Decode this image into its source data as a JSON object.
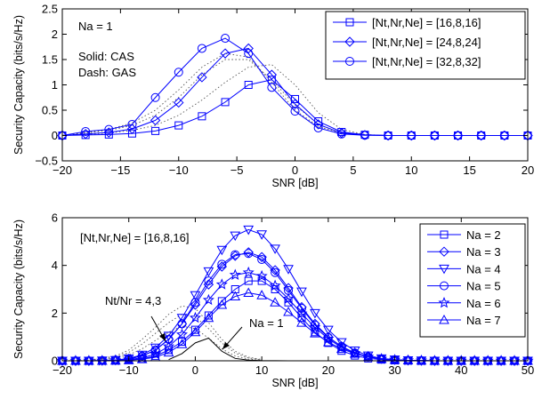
{
  "chart_data": [
    {
      "type": "line",
      "xlabel": "SNR [dB]",
      "ylabel": "Security Capacity (bits/s/Hz)",
      "xlim": [
        -20,
        20
      ],
      "ylim": [
        -0.5,
        2.5
      ],
      "xticks": [
        -20,
        -15,
        -10,
        -5,
        0,
        5,
        10,
        15,
        20
      ],
      "yticks": [
        -0.5,
        0,
        0.5,
        1,
        1.5,
        2,
        2.5
      ],
      "ytick_labels": [
        "−0.5",
        "0",
        "0.5",
        "1",
        "1.5",
        "2",
        "2.5"
      ],
      "xtick_labels": [
        "−20",
        "−15",
        "−10",
        "−5",
        "0",
        "5",
        "10",
        "15",
        "20"
      ],
      "grid": false,
      "legend_position": "top-right",
      "annotations": [
        "Na = 1",
        "Solid: CAS",
        "Dash: GAS"
      ],
      "x": [
        -20,
        -18,
        -16,
        -14,
        -12,
        -10,
        -8,
        -6,
        -4,
        -2,
        0,
        2,
        4,
        6,
        8,
        10,
        12,
        14,
        16,
        18,
        20
      ],
      "series": [
        {
          "name": "[Nt,Nr,Ne] = [16,8,16]",
          "marker": "square",
          "values": [
            0.0,
            0.01,
            0.02,
            0.04,
            0.09,
            0.2,
            0.38,
            0.66,
            1.0,
            1.1,
            0.72,
            0.28,
            0.07,
            0.015,
            0.0,
            0.0,
            0.0,
            0.0,
            0.0,
            0.0,
            0.0
          ],
          "dashed_values": [
            0.0,
            0.02,
            0.05,
            0.1,
            0.2,
            0.4,
            0.7,
            1.05,
            1.35,
            1.4,
            1.0,
            0.45,
            0.12,
            0.02,
            0.0,
            0.0,
            0.0,
            0.0,
            0.0,
            0.0,
            0.0
          ]
        },
        {
          "name": "[Nt,Nr,Ne] = [24,8,24]",
          "marker": "diamond",
          "values": [
            0.0,
            0.03,
            0.06,
            0.13,
            0.3,
            0.65,
            1.15,
            1.62,
            1.72,
            1.2,
            0.62,
            0.22,
            0.05,
            0.01,
            0.0,
            0.0,
            0.0,
            0.0,
            0.0,
            0.0,
            0.0
          ],
          "dashed_values": [
            0.0,
            0.05,
            0.1,
            0.2,
            0.4,
            0.75,
            1.2,
            1.5,
            1.5,
            1.1,
            0.6,
            0.22,
            0.05,
            0.01,
            0.0,
            0.0,
            0.0,
            0.0,
            0.0,
            0.0,
            0.0
          ]
        },
        {
          "name": "[Nt,Nr,Ne] = [32,8,32]",
          "marker": "circle",
          "values": [
            0.0,
            0.08,
            0.12,
            0.22,
            0.75,
            1.25,
            1.72,
            1.92,
            1.62,
            0.95,
            0.48,
            0.15,
            0.03,
            0.005,
            0.0,
            0.0,
            0.0,
            0.0,
            0.0,
            0.0,
            0.0
          ],
          "dashed_values": [
            0.0,
            0.06,
            0.12,
            0.25,
            0.5,
            0.9,
            1.35,
            1.62,
            1.55,
            1.05,
            0.5,
            0.18,
            0.04,
            0.01,
            0.0,
            0.0,
            0.0,
            0.0,
            0.0,
            0.0,
            0.0
          ]
        }
      ]
    },
    {
      "type": "line",
      "xlabel": "SNR [dB]",
      "ylabel": "Security Capacity (bits/s/Hz)",
      "xlim": [
        -20,
        50
      ],
      "ylim": [
        0,
        6
      ],
      "xticks": [
        -20,
        -10,
        0,
        10,
        20,
        30,
        40,
        50
      ],
      "yticks": [
        0,
        2,
        4,
        6
      ],
      "xtick_labels": [
        "−20",
        "−10",
        "0",
        "10",
        "20",
        "30",
        "40",
        "50"
      ],
      "ytick_labels": [
        "0",
        "2",
        "4",
        "6"
      ],
      "grid": false,
      "legend_position": "top-right",
      "annotations": [
        "[Nt,Nr,Ne] = [16,8,16]",
        "Nt/Nr = 4,3",
        "Na = 1"
      ],
      "x": [
        -20,
        -18,
        -16,
        -14,
        -12,
        -10,
        -8,
        -6,
        -4,
        -2,
        0,
        2,
        4,
        6,
        8,
        10,
        12,
        14,
        16,
        18,
        20,
        22,
        24,
        26,
        28,
        30,
        32,
        34,
        36,
        38,
        40,
        42,
        44,
        46,
        48,
        50
      ],
      "na1_curve": {
        "x": [
          -4,
          -2,
          0,
          2,
          4,
          6,
          8,
          10,
          14,
          20,
          30
        ],
        "values": [
          0.05,
          0.3,
          0.75,
          0.95,
          0.4,
          0.1,
          0.03,
          0.01,
          0.0,
          0.0,
          0.0
        ]
      },
      "series": [
        {
          "name": "Na = 2",
          "marker": "square",
          "values": [
            0.0,
            0.0,
            0.0,
            0.0,
            0.01,
            0.03,
            0.08,
            0.2,
            0.45,
            0.8,
            1.3,
            1.9,
            2.5,
            3.0,
            3.35,
            3.35,
            3.0,
            2.45,
            1.8,
            1.2,
            0.75,
            0.42,
            0.22,
            0.1,
            0.05,
            0.02,
            0.01,
            0.0,
            0.0,
            0.0,
            0.0,
            0.0,
            0.0,
            0.0,
            0.0,
            0.0
          ]
        },
        {
          "name": "Na = 3",
          "marker": "diamond",
          "values": [
            0.0,
            0.0,
            0.0,
            0.01,
            0.03,
            0.08,
            0.2,
            0.45,
            0.9,
            1.55,
            2.35,
            3.2,
            3.95,
            4.4,
            4.55,
            4.35,
            3.8,
            3.05,
            2.25,
            1.55,
            1.0,
            0.6,
            0.33,
            0.17,
            0.08,
            0.04,
            0.02,
            0.01,
            0.0,
            0.0,
            0.0,
            0.0,
            0.0,
            0.0,
            0.0,
            0.0
          ]
        },
        {
          "name": "Na = 4",
          "marker": "triangle-down",
          "values": [
            0.0,
            0.0,
            0.0,
            0.01,
            0.03,
            0.1,
            0.25,
            0.55,
            1.05,
            1.8,
            2.75,
            3.75,
            4.65,
            5.25,
            5.5,
            5.3,
            4.7,
            3.85,
            2.9,
            2.0,
            1.3,
            0.78,
            0.43,
            0.22,
            0.1,
            0.05,
            0.02,
            0.01,
            0.0,
            0.0,
            0.0,
            0.0,
            0.0,
            0.0,
            0.0,
            0.0
          ]
        },
        {
          "name": "Na = 5",
          "marker": "circle",
          "values": [
            0.0,
            0.0,
            0.0,
            0.01,
            0.03,
            0.08,
            0.2,
            0.45,
            0.9,
            1.55,
            2.45,
            3.35,
            4.05,
            4.45,
            4.5,
            4.25,
            3.7,
            2.95,
            2.2,
            1.5,
            0.98,
            0.6,
            0.33,
            0.17,
            0.08,
            0.04,
            0.02,
            0.01,
            0.0,
            0.0,
            0.0,
            0.0,
            0.0,
            0.0,
            0.0,
            0.0
          ]
        },
        {
          "name": "Na = 6",
          "marker": "star",
          "values": [
            0.0,
            0.0,
            0.0,
            0.0,
            0.02,
            0.05,
            0.12,
            0.28,
            0.6,
            1.1,
            1.8,
            2.55,
            3.2,
            3.6,
            3.7,
            3.55,
            3.15,
            2.6,
            1.98,
            1.4,
            0.92,
            0.56,
            0.32,
            0.17,
            0.08,
            0.04,
            0.02,
            0.01,
            0.0,
            0.0,
            0.0,
            0.0,
            0.0,
            0.0,
            0.0,
            0.0
          ]
        },
        {
          "name": "Na = 7",
          "marker": "triangle-up",
          "values": [
            0.0,
            0.0,
            0.0,
            0.0,
            0.01,
            0.03,
            0.07,
            0.15,
            0.35,
            0.7,
            1.2,
            1.8,
            2.35,
            2.7,
            2.85,
            2.75,
            2.45,
            2.05,
            1.6,
            1.15,
            0.78,
            0.5,
            0.3,
            0.16,
            0.08,
            0.04,
            0.02,
            0.01,
            0.0,
            0.0,
            0.0,
            0.0,
            0.0,
            0.0,
            0.0,
            0.0
          ]
        }
      ],
      "dotted_series": [
        {
          "x": [
            -20,
            -16,
            -12,
            -10,
            -8,
            -6,
            -4,
            -2,
            0,
            2,
            4,
            6,
            8,
            10
          ],
          "values": [
            0.0,
            0.02,
            0.2,
            0.45,
            0.9,
            1.4,
            1.95,
            2.3,
            2.2,
            1.6,
            0.9,
            0.4,
            0.15,
            0.05
          ]
        },
        {
          "x": [
            -20,
            -16,
            -12,
            -10,
            -8,
            -6,
            -4,
            -2,
            0,
            2,
            4,
            6,
            8,
            10
          ],
          "values": [
            0.0,
            0.02,
            0.15,
            0.35,
            0.7,
            1.15,
            1.6,
            1.95,
            1.85,
            1.35,
            0.75,
            0.32,
            0.12,
            0.04
          ]
        },
        {
          "x": [
            -20,
            -16,
            -12,
            -10,
            -8,
            -6,
            -4,
            -2,
            0,
            2,
            4,
            6,
            8,
            10
          ],
          "values": [
            0.0,
            0.01,
            0.1,
            0.25,
            0.5,
            0.85,
            1.2,
            1.45,
            1.35,
            0.95,
            0.5,
            0.2,
            0.07,
            0.02
          ]
        }
      ]
    }
  ]
}
